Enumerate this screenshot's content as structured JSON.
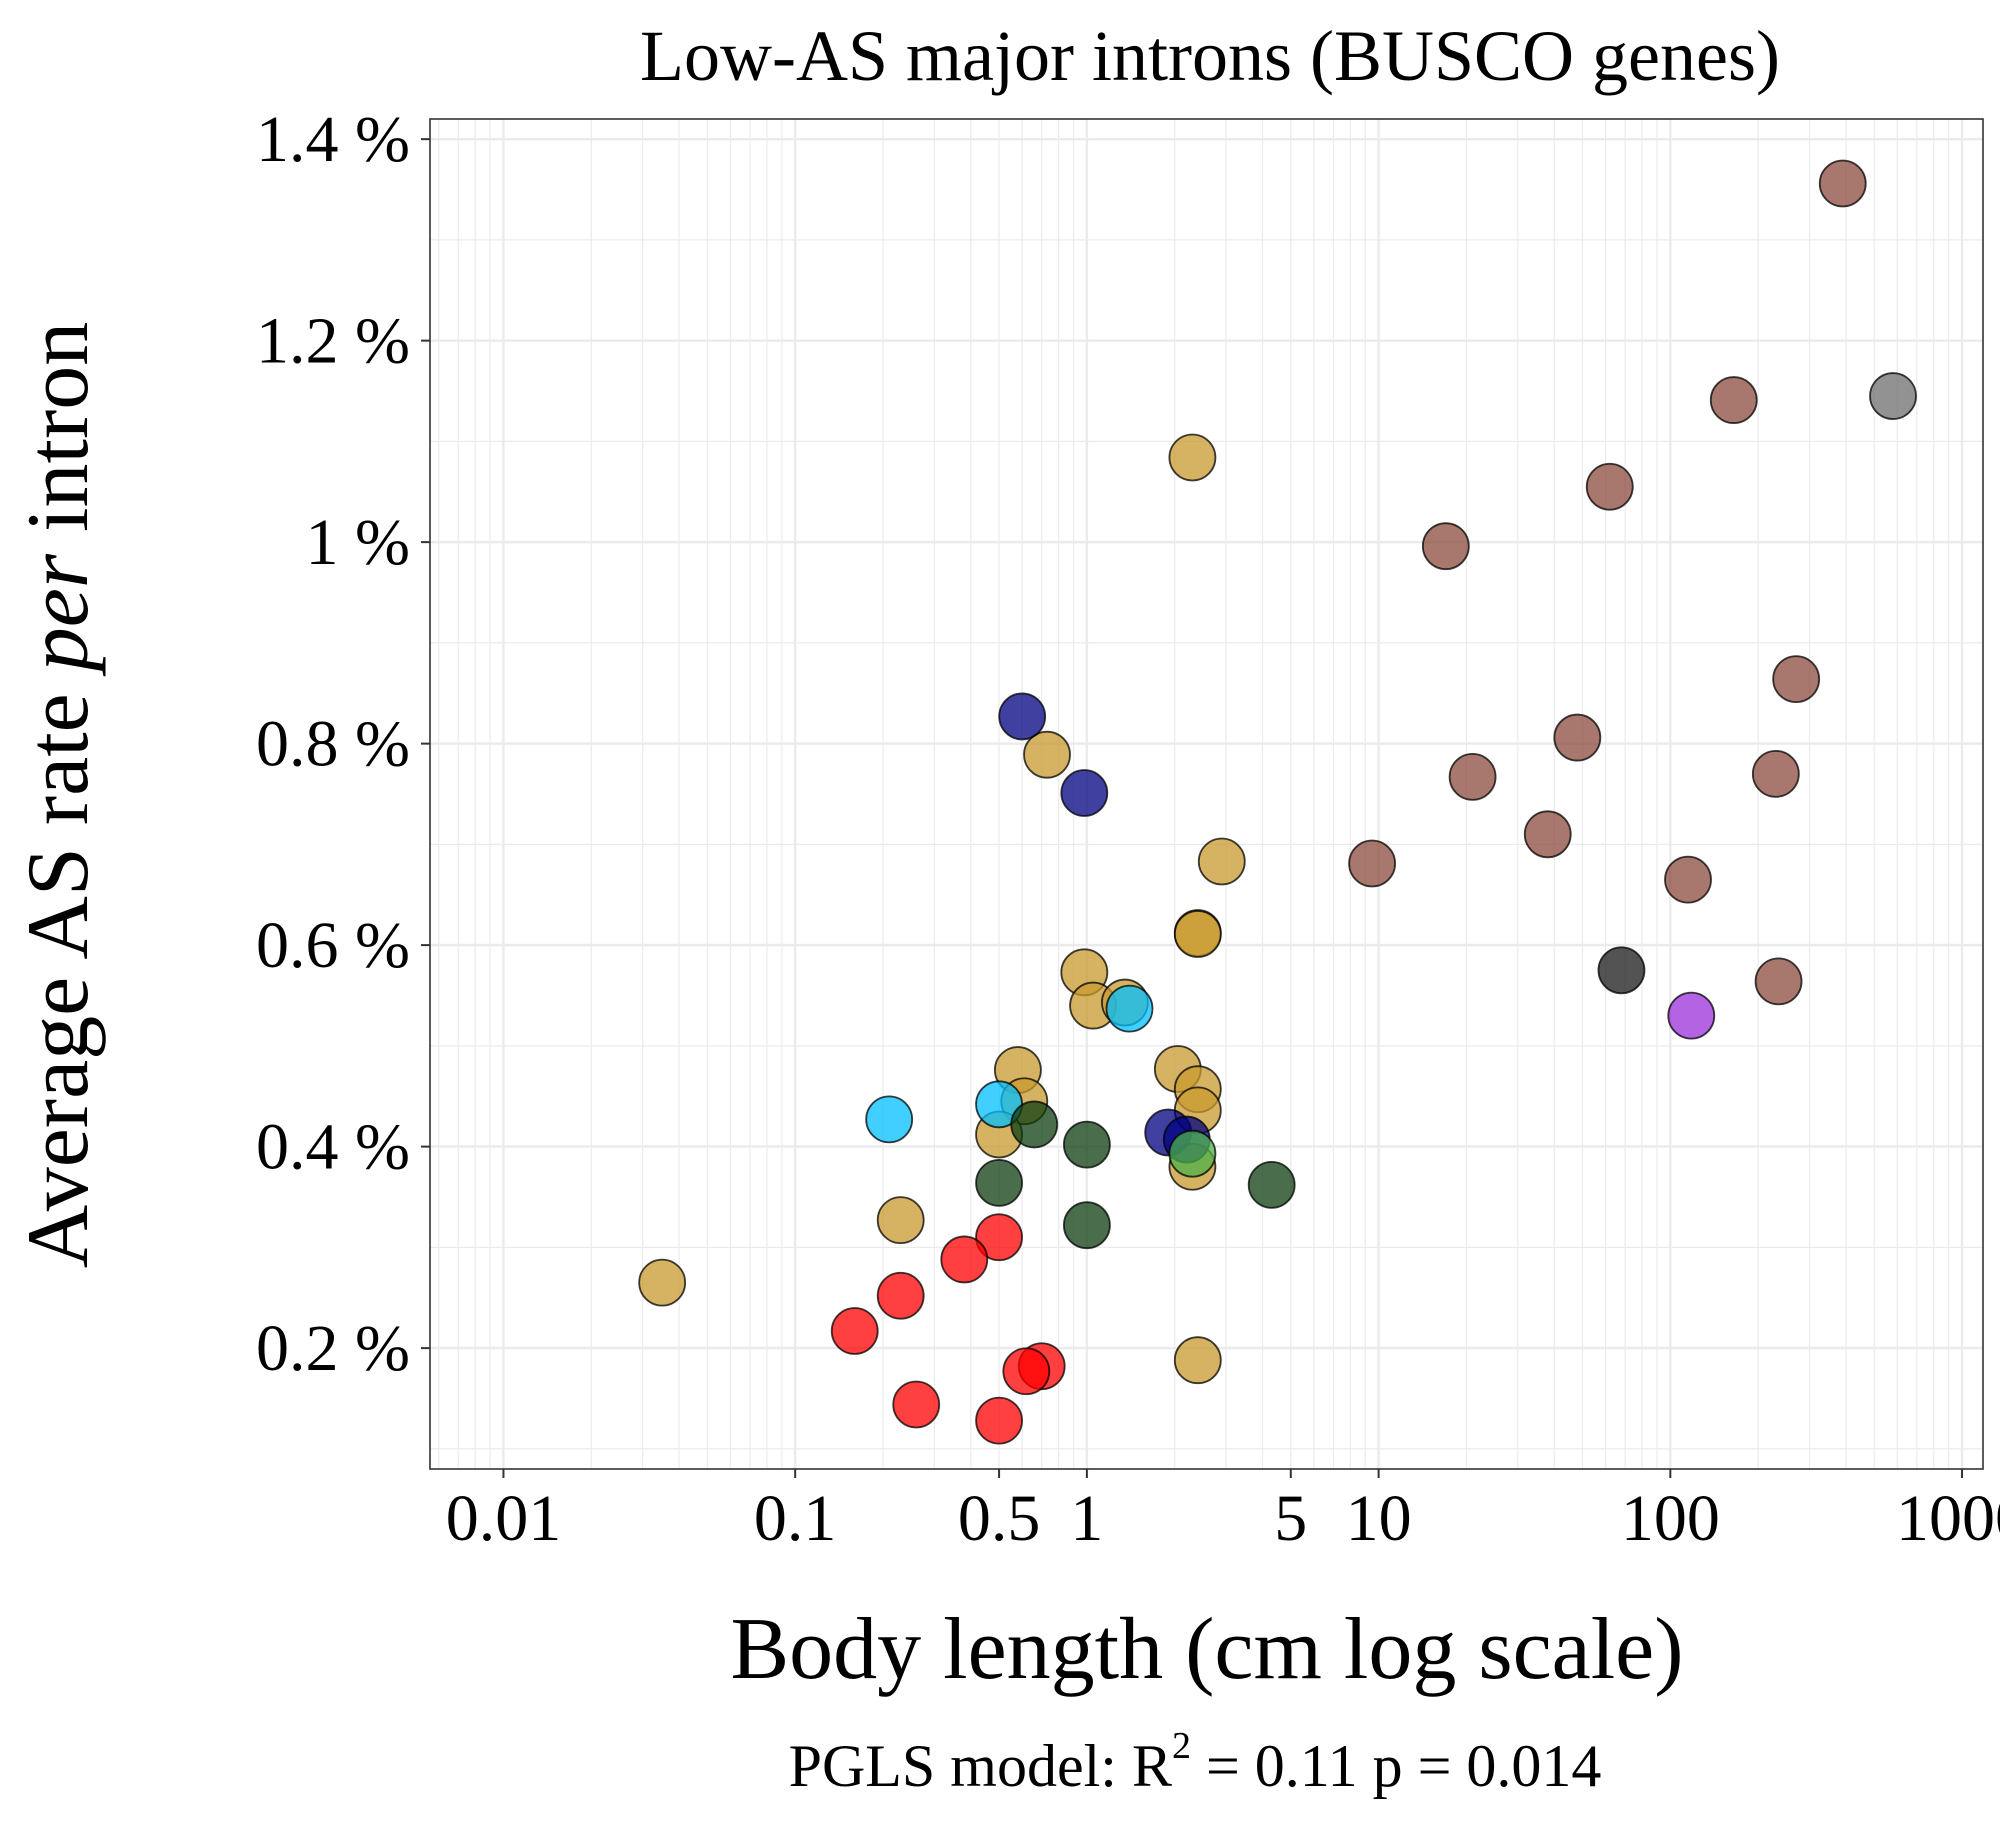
{
  "chart_data": {
    "type": "scatter",
    "title": "Low-AS major introns (BUSCO genes)",
    "xlabel": "Body length (cm log scale)",
    "ylabel": {
      "pre": "Average AS rate ",
      "italic": "per",
      "post": " intron"
    },
    "caption": {
      "pre": "PGLS model: R",
      "sup": "2",
      "post": " = 0.11    p = 0.014"
    },
    "x_scale": "log10",
    "xlim": [
      0.0056,
      1180
    ],
    "ylim": [
      0.0008,
      0.0142
    ],
    "x_ticks": [
      0.01,
      0.1,
      0.5,
      1,
      5,
      10,
      100,
      1000
    ],
    "x_tick_labels": [
      "0.01",
      "0.1",
      "0.5",
      "1",
      "5",
      "10",
      "100",
      "1000"
    ],
    "y_ticks": [
      0.002,
      0.004,
      0.006,
      0.008,
      0.01,
      0.012,
      0.014
    ],
    "y_tick_labels": [
      "0.2 %",
      "0.4 %",
      "0.6 %",
      "0.8 %",
      "1 %",
      "1.2 %",
      "1.4 %"
    ],
    "grid": true,
    "legend": "none",
    "marker_style": {
      "opacity": 0.75,
      "stroke": "#000000"
    },
    "groups": [
      {
        "color": "#8B4A3C",
        "points": [
          [
            390,
            0.01356
          ],
          [
            165,
            0.01141
          ],
          [
            62,
            0.01055
          ],
          [
            17,
            0.00996
          ],
          [
            270,
            0.00864
          ],
          [
            48,
            0.00806
          ],
          [
            21,
            0.00767
          ],
          [
            230,
            0.0077
          ],
          [
            38,
            0.0071
          ],
          [
            9.5,
            0.00681
          ],
          [
            115,
            0.00665
          ],
          [
            235,
            0.00564
          ]
        ]
      },
      {
        "color": "#6E6E6E",
        "points": [
          [
            580,
            0.01145
          ]
        ]
      },
      {
        "color": "#1A1A1A",
        "points": [
          [
            68,
            0.00575
          ]
        ]
      },
      {
        "color": "#9B30D9",
        "points": [
          [
            118,
            0.0053
          ]
        ]
      },
      {
        "color": "#C8992E",
        "points": [
          [
            2.3,
            0.01084
          ],
          [
            0.73,
            0.00789
          ],
          [
            2.9,
            0.00683
          ],
          [
            2.4,
            0.00612
          ],
          [
            2.4,
            0.00611
          ],
          [
            0.98,
            0.00573
          ],
          [
            1.05,
            0.0054
          ],
          [
            1.35,
            0.00543
          ],
          [
            0.58,
            0.00476
          ],
          [
            2.05,
            0.00477
          ],
          [
            0.61,
            0.00445
          ],
          [
            2.4,
            0.00457
          ],
          [
            2.4,
            0.00436
          ],
          [
            0.5,
            0.00412
          ],
          [
            0.23,
            0.00327
          ],
          [
            2.3,
            0.0038
          ],
          [
            0.035,
            0.00265
          ],
          [
            2.4,
            0.00188
          ]
        ]
      },
      {
        "color": "#00BFFF",
        "points": [
          [
            0.21,
            0.00427
          ],
          [
            0.5,
            0.00442
          ],
          [
            1.4,
            0.00537
          ]
        ]
      },
      {
        "color": "#000080",
        "points": [
          [
            0.6,
            0.00827
          ],
          [
            0.98,
            0.00751
          ],
          [
            1.9,
            0.00414
          ],
          [
            2.2,
            0.00407
          ]
        ]
      },
      {
        "color": "#0E3D10",
        "points": [
          [
            0.66,
            0.00422
          ],
          [
            1.0,
            0.00402
          ],
          [
            0.5,
            0.00364
          ],
          [
            4.3,
            0.00362
          ],
          [
            1.0,
            0.00322
          ]
        ]
      },
      {
        "color": "#4CB049",
        "points": [
          [
            2.3,
            0.00393
          ]
        ]
      },
      {
        "color": "#FF0000",
        "points": [
          [
            0.5,
            0.0031
          ],
          [
            0.38,
            0.00288
          ],
          [
            0.23,
            0.00252
          ],
          [
            0.16,
            0.00217
          ],
          [
            0.26,
            0.00144
          ],
          [
            0.5,
            0.00128
          ],
          [
            0.7,
            0.00182
          ],
          [
            0.62,
            0.00177
          ]
        ]
      }
    ]
  }
}
